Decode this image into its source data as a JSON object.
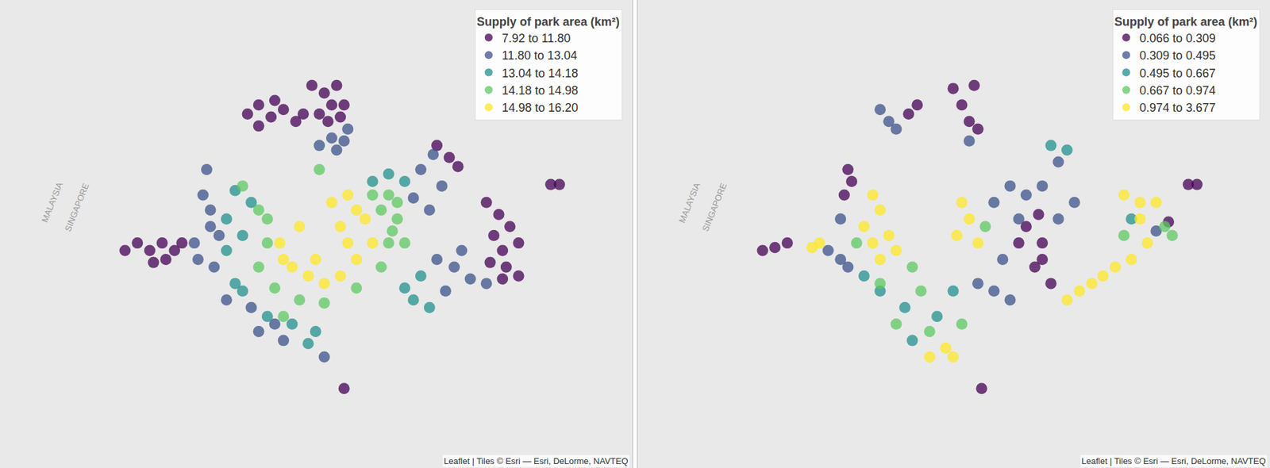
{
  "chart_data": [
    {
      "type": "map",
      "legend_title": "Supply of park area (km²)",
      "legend": "top right",
      "grid": false,
      "tick_labels": false,
      "xlim": [
        103.542,
        104.053
      ],
      "ylim": [
        1.192,
        1.504
      ],
      "classes": [
        {
          "label": "7.92 to 11.80",
          "color": "#440154"
        },
        {
          "label": "11.80 to 13.04",
          "color": "#3b528b"
        },
        {
          "label": "13.04 to 14.18",
          "color": "#21908c"
        },
        {
          "label": "14.18 to 14.98",
          "color": "#5dc863"
        },
        {
          "label": "14.98 to 16.20",
          "color": "#fde725"
        }
      ],
      "map_labels": [
        {
          "text": "MALAYSIA",
          "lon": 103.584,
          "lat": 1.369
        },
        {
          "text": "SINGAPORE",
          "lon": 103.604,
          "lat": 1.366
        }
      ],
      "attribution": "Leaflet | Tiles © Esri — Esri, DeLorme, NAVTEQ",
      "points": [
        [
          103.742,
          1.428,
          0
        ],
        [
          103.751,
          1.434,
          0
        ],
        [
          103.761,
          1.426,
          0
        ],
        [
          103.771,
          1.431,
          0
        ],
        [
          103.781,
          1.423,
          0
        ],
        [
          103.787,
          1.428,
          0
        ],
        [
          103.751,
          1.42,
          0
        ],
        [
          103.764,
          1.437,
          0
        ],
        [
          103.794,
          1.447,
          0
        ],
        [
          103.804,
          1.442,
          0
        ],
        [
          103.81,
          1.434,
          0
        ],
        [
          103.817,
          1.426,
          0
        ],
        [
          103.8,
          1.428,
          0
        ],
        [
          103.814,
          1.447,
          0
        ],
        [
          103.807,
          1.423,
          0
        ],
        [
          103.82,
          1.434,
          0
        ],
        [
          103.81,
          1.412,
          1
        ],
        [
          103.82,
          1.41,
          1
        ],
        [
          103.814,
          1.404,
          1
        ],
        [
          103.823,
          1.418,
          1
        ],
        [
          103.8,
          1.407,
          1
        ],
        [
          103.643,
          1.337,
          0
        ],
        [
          103.653,
          1.342,
          0
        ],
        [
          103.663,
          1.337,
          0
        ],
        [
          103.673,
          1.342,
          0
        ],
        [
          103.683,
          1.337,
          0
        ],
        [
          103.689,
          1.342,
          0
        ],
        [
          103.666,
          1.329,
          0
        ],
        [
          103.676,
          1.331,
          0
        ],
        [
          103.709,
          1.391,
          1
        ],
        [
          103.706,
          1.374,
          1
        ],
        [
          103.712,
          1.364,
          1
        ],
        [
          103.702,
          1.331,
          1
        ],
        [
          103.715,
          1.326,
          1
        ],
        [
          103.719,
          1.347,
          1
        ],
        [
          103.699,
          1.342,
          1
        ],
        [
          103.712,
          1.353,
          1
        ],
        [
          103.732,
          1.377,
          2
        ],
        [
          103.745,
          1.369,
          2
        ],
        [
          103.725,
          1.358,
          2
        ],
        [
          103.738,
          1.347,
          2
        ],
        [
          103.725,
          1.337,
          2
        ],
        [
          103.738,
          1.31,
          2
        ],
        [
          103.758,
          1.293,
          2
        ],
        [
          103.778,
          1.288,
          2
        ],
        [
          103.797,
          1.283,
          2
        ],
        [
          103.791,
          1.275,
          2
        ],
        [
          103.732,
          1.315,
          2
        ],
        [
          103.804,
          1.266,
          1
        ],
        [
          103.738,
          1.38,
          3
        ],
        [
          103.751,
          1.364,
          3
        ],
        [
          103.758,
          1.342,
          3
        ],
        [
          103.758,
          1.358,
          3
        ],
        [
          103.751,
          1.326,
          3
        ],
        [
          103.764,
          1.312,
          3
        ],
        [
          103.784,
          1.304,
          3
        ],
        [
          103.804,
          1.302,
          3
        ],
        [
          103.83,
          1.312,
          3
        ],
        [
          103.85,
          1.326,
          3
        ],
        [
          103.856,
          1.342,
          3
        ],
        [
          103.85,
          1.364,
          3
        ],
        [
          103.856,
          1.374,
          3
        ],
        [
          103.843,
          1.374,
          3
        ],
        [
          103.863,
          1.358,
          3
        ],
        [
          103.863,
          1.369,
          3
        ],
        [
          103.859,
          1.35,
          3
        ],
        [
          103.869,
          1.342,
          3
        ],
        [
          103.8,
          1.391,
          3
        ],
        [
          103.771,
          1.293,
          3
        ],
        [
          103.768,
          1.342,
          4
        ],
        [
          103.778,
          1.326,
          4
        ],
        [
          103.791,
          1.32,
          4
        ],
        [
          103.804,
          1.315,
          4
        ],
        [
          103.817,
          1.32,
          4
        ],
        [
          103.83,
          1.331,
          4
        ],
        [
          103.81,
          1.369,
          4
        ],
        [
          103.817,
          1.353,
          4
        ],
        [
          103.823,
          1.342,
          4
        ],
        [
          103.837,
          1.358,
          4
        ],
        [
          103.843,
          1.342,
          4
        ],
        [
          103.784,
          1.353,
          4
        ],
        [
          103.823,
          1.374,
          4
        ],
        [
          103.83,
          1.364,
          4
        ],
        [
          103.797,
          1.331,
          4
        ],
        [
          103.771,
          1.331,
          4
        ],
        [
          103.725,
          1.304,
          1
        ],
        [
          103.751,
          1.283,
          1
        ],
        [
          103.771,
          1.277,
          1
        ],
        [
          103.764,
          1.288,
          1
        ],
        [
          103.745,
          1.299,
          1
        ],
        [
          103.843,
          1.383,
          2
        ],
        [
          103.856,
          1.388,
          2
        ],
        [
          103.869,
          1.383,
          2
        ],
        [
          103.882,
          1.32,
          2
        ],
        [
          103.876,
          1.304,
          2
        ],
        [
          103.889,
          1.299,
          2
        ],
        [
          103.869,
          1.312,
          2
        ],
        [
          103.882,
          1.391,
          1
        ],
        [
          103.892,
          1.401,
          1
        ],
        [
          103.899,
          1.38,
          1
        ],
        [
          103.876,
          1.372,
          1
        ],
        [
          103.895,
          1.331,
          1
        ],
        [
          103.909,
          1.326,
          1
        ],
        [
          103.922,
          1.318,
          1
        ],
        [
          103.935,
          1.315,
          1
        ],
        [
          103.915,
          1.337,
          1
        ],
        [
          103.902,
          1.31,
          1
        ],
        [
          103.889,
          1.364,
          1
        ],
        [
          103.895,
          1.407,
          0
        ],
        [
          103.905,
          1.399,
          0
        ],
        [
          103.912,
          1.393,
          0
        ],
        [
          103.935,
          1.369,
          0
        ],
        [
          103.945,
          1.361,
          0
        ],
        [
          103.954,
          1.353,
          0
        ],
        [
          103.961,
          1.342,
          0
        ],
        [
          103.948,
          1.337,
          0
        ],
        [
          103.941,
          1.347,
          0
        ],
        [
          103.951,
          1.326,
          0
        ],
        [
          103.938,
          1.329,
          0
        ],
        [
          103.948,
          1.318,
          0
        ],
        [
          103.961,
          1.32,
          0
        ],
        [
          103.82,
          1.245,
          0
        ],
        [
          103.987,
          1.381,
          0
        ],
        [
          103.994,
          1.381,
          0
        ]
      ]
    },
    {
      "type": "map",
      "legend_title": "Supply of park area (km²)",
      "legend": "top right",
      "grid": false,
      "tick_labels": false,
      "xlim": [
        103.542,
        104.053
      ],
      "ylim": [
        1.192,
        1.504
      ],
      "classes": [
        {
          "label": "0.066 to 0.309",
          "color": "#440154"
        },
        {
          "label": "0.309 to 0.495",
          "color": "#3b528b"
        },
        {
          "label": "0.495 to 0.667",
          "color": "#21908c"
        },
        {
          "label": "0.667 to 0.974",
          "color": "#5dc863"
        },
        {
          "label": "0.974 to 3.677",
          "color": "#fde725"
        }
      ],
      "map_labels": [
        {
          "text": "MALAYSIA",
          "lon": 103.584,
          "lat": 1.369
        },
        {
          "text": "SINGAPORE",
          "lon": 103.604,
          "lat": 1.366
        }
      ],
      "attribution": "Leaflet | Tiles © Esri — Esri, DeLorme, NAVTEQ",
      "points": [
        [
          103.768,
          1.434,
          0
        ],
        [
          103.761,
          1.428,
          0
        ],
        [
          103.797,
          1.445,
          0
        ],
        [
          103.804,
          1.434,
          0
        ],
        [
          103.81,
          1.423,
          0
        ],
        [
          103.817,
          1.418,
          0
        ],
        [
          103.814,
          1.447,
          0
        ],
        [
          103.643,
          1.337,
          0
        ],
        [
          103.653,
          1.339,
          0
        ],
        [
          103.663,
          1.342,
          0
        ],
        [
          103.712,
          1.391,
          0
        ],
        [
          103.709,
          1.374,
          0
        ],
        [
          103.715,
          1.383,
          0
        ],
        [
          103.856,
          1.353,
          0
        ],
        [
          103.869,
          1.342,
          0
        ],
        [
          103.863,
          1.326,
          0
        ],
        [
          103.876,
          1.315,
          0
        ],
        [
          103.869,
          1.331,
          0
        ],
        [
          103.85,
          1.342,
          0
        ],
        [
          103.866,
          1.361,
          0
        ],
        [
          103.971,
          1.356,
          0
        ],
        [
          103.82,
          1.245,
          0
        ],
        [
          103.987,
          1.381,
          0
        ],
        [
          103.994,
          1.381,
          0
        ],
        [
          103.738,
          1.431,
          1
        ],
        [
          103.745,
          1.423,
          1
        ],
        [
          103.751,
          1.418,
          1
        ],
        [
          103.81,
          1.41,
          1
        ],
        [
          103.696,
          1.337,
          1
        ],
        [
          103.712,
          1.326,
          1
        ],
        [
          103.706,
          1.358,
          1
        ],
        [
          103.83,
          1.369,
          1
        ],
        [
          103.843,
          1.38,
          1
        ],
        [
          103.85,
          1.358,
          1
        ],
        [
          103.856,
          1.374,
          1
        ],
        [
          103.869,
          1.38,
          1
        ],
        [
          103.882,
          1.396,
          1
        ],
        [
          103.837,
          1.331,
          1
        ],
        [
          103.83,
          1.31,
          1
        ],
        [
          103.817,
          1.315,
          1
        ],
        [
          103.843,
          1.304,
          1
        ],
        [
          103.706,
          1.331,
          1
        ],
        [
          103.895,
          1.369,
          1
        ],
        [
          103.882,
          1.358,
          1
        ],
        [
          103.961,
          1.35,
          1
        ],
        [
          103.876,
          1.407,
          2
        ],
        [
          103.889,
          1.404,
          2
        ],
        [
          103.738,
          1.31,
          2
        ],
        [
          103.758,
          1.299,
          2
        ],
        [
          103.784,
          1.293,
          2
        ],
        [
          103.764,
          1.277,
          2
        ],
        [
          103.725,
          1.32,
          2
        ],
        [
          103.941,
          1.358,
          2
        ],
        [
          103.797,
          1.31,
          2
        ],
        [
          103.823,
          1.353,
          3
        ],
        [
          103.738,
          1.315,
          3
        ],
        [
          103.771,
          1.31,
          3
        ],
        [
          103.751,
          1.288,
          3
        ],
        [
          103.778,
          1.283,
          3
        ],
        [
          103.968,
          1.353,
          3
        ],
        [
          103.974,
          1.347,
          3
        ],
        [
          103.935,
          1.347,
          3
        ],
        [
          103.764,
          1.326,
          3
        ],
        [
          103.719,
          1.342,
          3
        ],
        [
          103.804,
          1.288,
          3
        ],
        [
          103.683,
          1.339,
          4
        ],
        [
          103.689,
          1.342,
          4
        ],
        [
          103.732,
          1.374,
          4
        ],
        [
          103.738,
          1.364,
          4
        ],
        [
          103.745,
          1.347,
          4
        ],
        [
          103.751,
          1.337,
          4
        ],
        [
          103.732,
          1.342,
          4
        ],
        [
          103.738,
          1.331,
          4
        ],
        [
          103.725,
          1.353,
          4
        ],
        [
          103.804,
          1.369,
          4
        ],
        [
          103.81,
          1.358,
          4
        ],
        [
          103.817,
          1.342,
          4
        ],
        [
          103.8,
          1.347,
          4
        ],
        [
          103.791,
          1.272,
          4
        ],
        [
          103.797,
          1.266,
          4
        ],
        [
          103.778,
          1.266,
          4
        ],
        [
          103.889,
          1.304,
          4
        ],
        [
          103.909,
          1.315,
          4
        ],
        [
          103.928,
          1.326,
          4
        ],
        [
          103.941,
          1.331,
          4
        ],
        [
          103.954,
          1.342,
          4
        ],
        [
          103.948,
          1.358,
          4
        ],
        [
          103.961,
          1.369,
          4
        ],
        [
          103.935,
          1.374,
          4
        ],
        [
          103.948,
          1.369,
          4
        ],
        [
          103.899,
          1.31,
          4
        ],
        [
          103.918,
          1.32,
          4
        ]
      ]
    }
  ]
}
